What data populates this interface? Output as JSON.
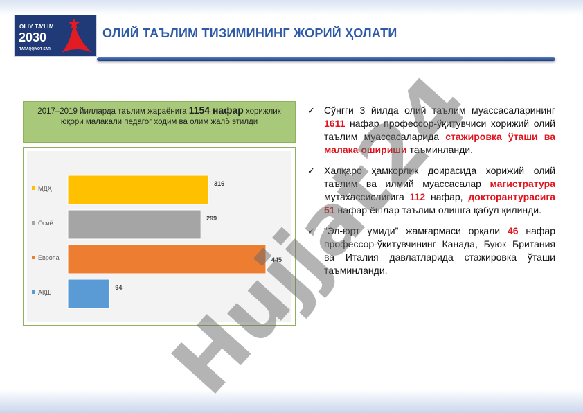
{
  "logo": {
    "line1": "OLIY TA'LIM",
    "line2": "2030",
    "line3": "TARAQQIYOT SARI"
  },
  "header": {
    "title": "ОЛИЙ ТАЪЛИМ ТИЗИМИНИНГ ЖОРИЙ ҲОЛАТИ"
  },
  "info_box": {
    "text_before": "2017–2019 йилларда таълим жараёнига ",
    "highlight": "1154 нафар",
    "text_after": " хорижлик юқори малакали педагог ходим ва олим жалб этилди"
  },
  "chart_data": {
    "type": "bar",
    "orientation": "horizontal",
    "categories": [
      "МДҲ",
      "Осиё",
      "Европа",
      "АҚШ"
    ],
    "values": [
      316,
      299,
      445,
      94
    ],
    "colors": [
      "#ffc000",
      "#a5a5a5",
      "#ed7d31",
      "#5b9bd5"
    ],
    "legend_position": "left",
    "grid": false
  },
  "bullets": [
    {
      "parts": [
        {
          "t": "Сўнгги 3 йилда олий таълим муассасаларининг ",
          "red": false
        },
        {
          "t": "1611",
          "red": true
        },
        {
          "t": " нафар профессор-ўқитувчиси хорижий олий таълим муассасаларида ",
          "red": false
        },
        {
          "t": "стажировка ўташи ва малака ошириши",
          "red": true
        },
        {
          "t": " таъминланди.",
          "red": false
        }
      ]
    },
    {
      "parts": [
        {
          "t": "Халқаро ҳамкорлик доирасида хорижий олий таълим ва илмий муассасалар ",
          "red": false
        },
        {
          "t": "магистратура",
          "red": true
        },
        {
          "t": " мутахассислигига ",
          "red": false
        },
        {
          "t": "112",
          "red": true
        },
        {
          "t": " нафар, ",
          "red": false
        },
        {
          "t": "докторантурасига 51",
          "red": true
        },
        {
          "t": " нафар ёшлар таълим олишга қабул қилинди.",
          "red": false
        }
      ]
    },
    {
      "parts": [
        {
          "t": "“Эл-юрт умиди” жамғармаси орқали ",
          "red": false
        },
        {
          "t": "46",
          "red": true
        },
        {
          "t": " нафар профессор-ўқитувчининг Канада, Буюк Британия ва Италия давлатларида стажировка ўташи таъминланди.",
          "red": false
        }
      ]
    }
  ],
  "watermark": "Hujjat24"
}
